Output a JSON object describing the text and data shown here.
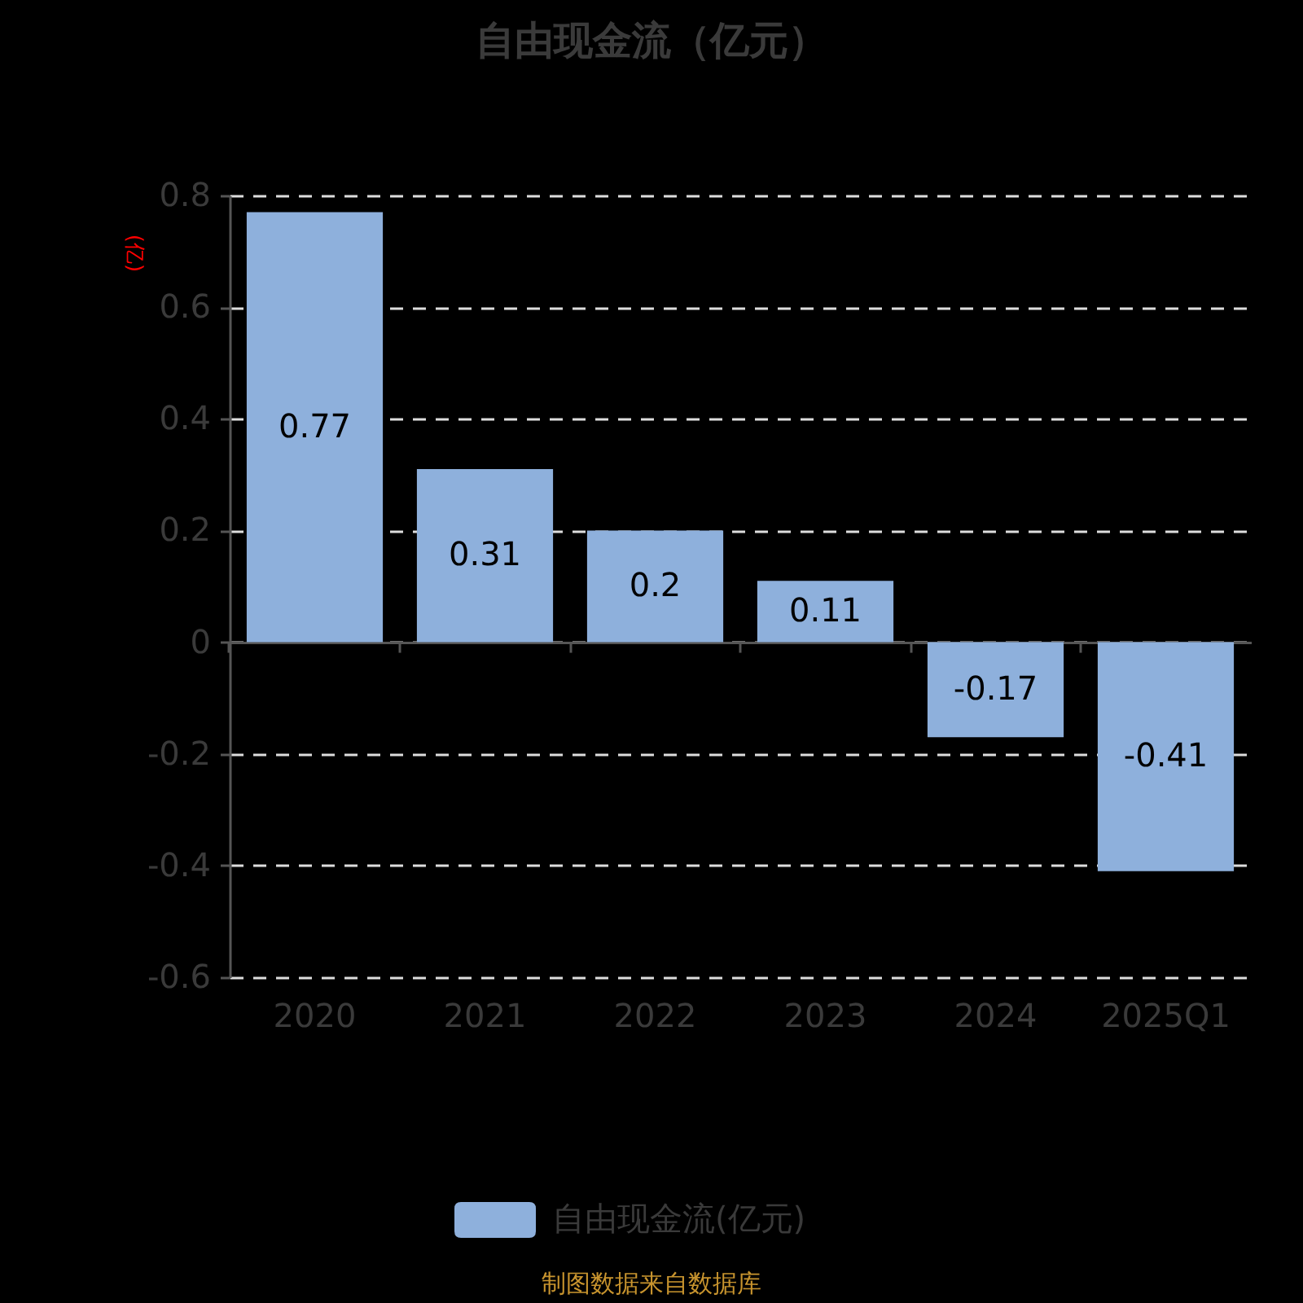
{
  "chart_data": {
    "type": "bar",
    "title": "自由现金流（亿元）",
    "ylabel": "(亿)",
    "categories": [
      "2020",
      "2021",
      "2022",
      "2023",
      "2024",
      "2025Q1"
    ],
    "series": [
      {
        "name": "自由现金流(亿元)",
        "color": "#8eb0dc",
        "values": [
          0.77,
          0.31,
          0.2,
          0.11,
          -0.17,
          -0.41
        ]
      }
    ],
    "ylim": [
      -0.6,
      0.8
    ],
    "yticks": [
      -0.6,
      -0.4,
      -0.2,
      0,
      0.2,
      0.4,
      0.6,
      0.8
    ],
    "grid": "y",
    "legend": "bottom",
    "data_labels": true,
    "annotations": [
      "制图数据来自数据库"
    ]
  }
}
